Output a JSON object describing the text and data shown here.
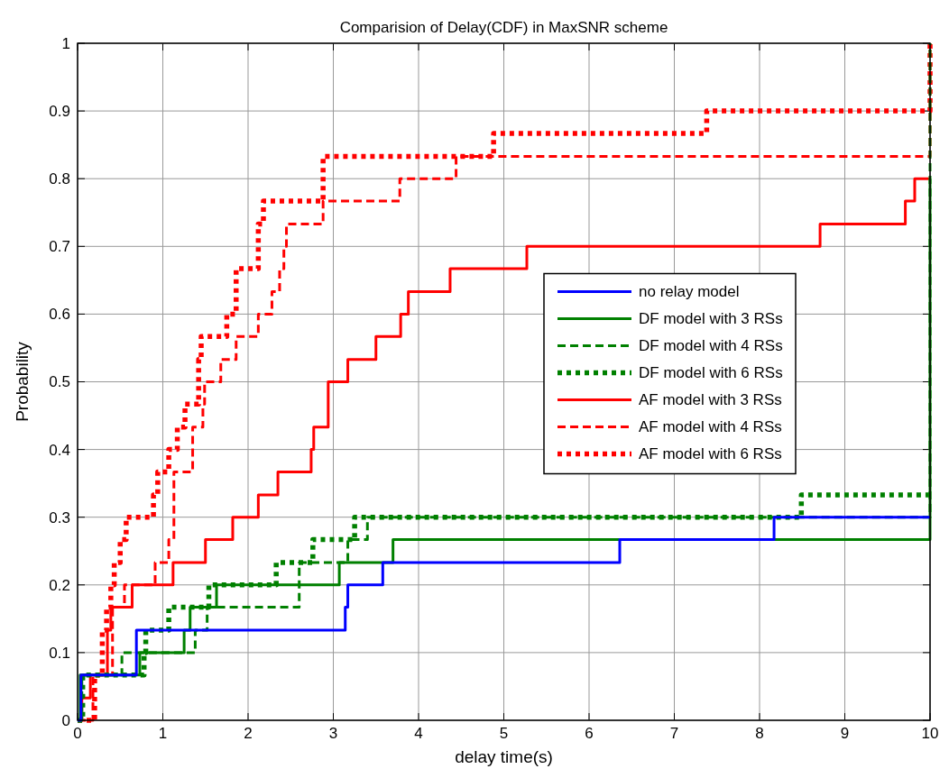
{
  "chart_data": {
    "type": "step",
    "title": "Comparision of Delay(CDF) in MaxSNR scheme",
    "xlabel": "delay time(s)",
    "ylabel": "Probability",
    "xlim": [
      0,
      10
    ],
    "ylim": [
      0,
      1
    ],
    "xticks": [
      0,
      1,
      2,
      3,
      4,
      5,
      6,
      7,
      8,
      9,
      10
    ],
    "yticks": [
      0,
      0.1,
      0.2,
      0.3,
      0.4,
      0.5,
      0.6,
      0.7,
      0.8,
      0.9,
      1
    ],
    "grid": true,
    "legend": "right",
    "marker": "none",
    "series": [
      {
        "name": "no relay model",
        "color": "#0000ff",
        "line_style": "solid",
        "x": [
          0,
          0.04,
          0.69,
          3.14,
          3.17,
          3.58,
          6.36,
          8.17,
          10
        ],
        "values": [
          0,
          0.067,
          0.133,
          0.167,
          0.2,
          0.233,
          0.267,
          0.3,
          0.3
        ]
      },
      {
        "name": "DF model with 3 RSs",
        "color": "#008000",
        "line_style": "solid",
        "x": [
          0,
          0.03,
          0.73,
          1.25,
          1.32,
          1.63,
          3.07,
          3.7,
          10
        ],
        "values": [
          0,
          0.067,
          0.1,
          0.133,
          0.167,
          0.2,
          0.233,
          0.267,
          0.8
        ]
      },
      {
        "name": "DF model with 4 RSs",
        "color": "#008000",
        "line_style": "dashed",
        "x": [
          0,
          0.05,
          0.52,
          1.38,
          1.52,
          2.6,
          3.17,
          3.4,
          10
        ],
        "values": [
          0,
          0.067,
          0.1,
          0.133,
          0.167,
          0.233,
          0.267,
          0.3,
          1
        ]
      },
      {
        "name": "DF model with 6 RSs",
        "color": "#008000",
        "line_style": "dotted",
        "x": [
          0,
          0.06,
          0.78,
          0.8,
          1.07,
          1.54,
          2.33,
          2.76,
          3.25,
          8.49,
          10
        ],
        "values": [
          0,
          0.067,
          0.1,
          0.133,
          0.167,
          0.2,
          0.233,
          0.267,
          0.3,
          0.333,
          0.333
        ]
      },
      {
        "name": "AF model with 3 RSs",
        "color": "#ff0000",
        "line_style": "solid",
        "x": [
          0,
          0.05,
          0.15,
          0.35,
          0.39,
          0.64,
          1.12,
          1.5,
          1.82,
          2.12,
          2.35,
          2.74,
          2.77,
          2.94,
          3.17,
          3.5,
          3.79,
          3.88,
          4.37,
          5.27,
          8.71,
          9.71,
          9.82,
          10
        ],
        "values": [
          0,
          0.033,
          0.067,
          0.133,
          0.167,
          0.2,
          0.233,
          0.267,
          0.3,
          0.333,
          0.367,
          0.4,
          0.433,
          0.5,
          0.533,
          0.567,
          0.6,
          0.633,
          0.667,
          0.7,
          0.733,
          0.767,
          0.8,
          0.8
        ]
      },
      {
        "name": "AF model with 4 RSs",
        "color": "#ff0000",
        "line_style": "dashed",
        "x": [
          0,
          0.18,
          0.41,
          0.55,
          0.91,
          1.07,
          1.13,
          1.35,
          1.47,
          1.49,
          1.68,
          1.86,
          2.12,
          2.28,
          2.37,
          2.42,
          2.45,
          2.88,
          3.78,
          4.44,
          10
        ],
        "values": [
          0,
          0.067,
          0.167,
          0.2,
          0.233,
          0.267,
          0.367,
          0.433,
          0.467,
          0.5,
          0.533,
          0.567,
          0.6,
          0.633,
          0.667,
          0.7,
          0.733,
          0.767,
          0.8,
          0.833,
          1
        ]
      },
      {
        "name": "AF model with 6 RSs",
        "color": "#ff0000",
        "line_style": "dotted",
        "x": [
          0,
          0.2,
          0.29,
          0.34,
          0.39,
          0.43,
          0.5,
          0.57,
          0.89,
          0.94,
          1.07,
          1.17,
          1.26,
          1.42,
          1.45,
          1.75,
          1.86,
          2.12,
          2.18,
          2.88,
          4.88,
          7.38,
          10
        ],
        "values": [
          0,
          0.067,
          0.133,
          0.167,
          0.2,
          0.233,
          0.267,
          0.3,
          0.333,
          0.367,
          0.4,
          0.433,
          0.467,
          0.533,
          0.567,
          0.6,
          0.667,
          0.733,
          0.767,
          0.833,
          0.867,
          0.9,
          1
        ]
      }
    ]
  }
}
